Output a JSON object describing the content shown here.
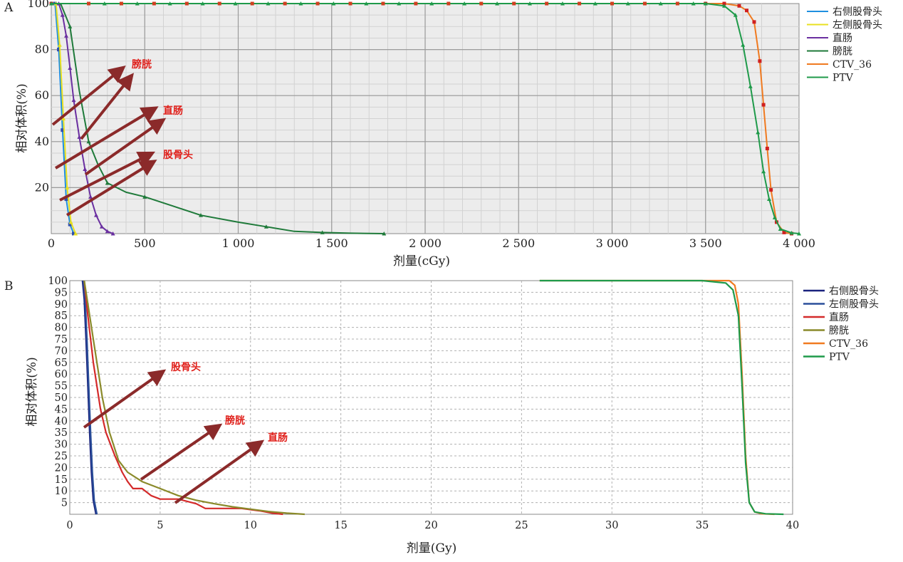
{
  "chart_data": [
    {
      "type": "line",
      "panel_label": "A",
      "xlabel": "剂量(cGy)",
      "ylabel": "相对体积(%)",
      "xlim": [
        0,
        4000
      ],
      "ylim": [
        0,
        100
      ],
      "x_ticks": [
        0,
        500,
        1000,
        1500,
        2000,
        2500,
        3000,
        3500,
        4000
      ],
      "x_tick_labels": [
        "0",
        "500",
        "1 000",
        "1 500",
        "2 000",
        "2 500",
        "3 000",
        "3 500",
        "4 000"
      ],
      "y_ticks": [
        20,
        40,
        60,
        80,
        100
      ],
      "y_tick_labels": [
        "20",
        "40",
        "60",
        "80",
        "100"
      ],
      "grid": true,
      "legend_position": "right",
      "series": [
        {
          "name": "右侧股骨头",
          "color": "#1f8fe0",
          "marker": "circle",
          "x": [
            0,
            20,
            40,
            60,
            80,
            100,
            120
          ],
          "y": [
            100,
            100,
            80,
            45,
            15,
            4,
            0
          ]
        },
        {
          "name": "左侧股骨头",
          "color": "#e8e020",
          "marker": "triangle",
          "x": [
            0,
            25,
            45,
            65,
            85,
            105,
            130
          ],
          "y": [
            100,
            100,
            82,
            50,
            20,
            5,
            0
          ]
        },
        {
          "name": "直肠",
          "color": "#6a2fa0",
          "marker": "triangle",
          "x": [
            0,
            40,
            60,
            80,
            100,
            120,
            150,
            180,
            210,
            240,
            270,
            300,
            330
          ],
          "y": [
            100,
            100,
            95,
            86,
            72,
            58,
            42,
            28,
            16,
            8,
            3,
            1,
            0
          ]
        },
        {
          "name": "膀胱",
          "color": "#1f7a3a",
          "marker": "triangle",
          "x": [
            0,
            50,
            100,
            150,
            200,
            250,
            300,
            400,
            500,
            650,
            800,
            1000,
            1150,
            1300,
            1450,
            1600,
            1780
          ],
          "y": [
            100,
            100,
            90,
            62,
            40,
            30,
            22,
            18,
            16,
            12,
            8,
            5,
            3,
            1,
            0.5,
            0.2,
            0
          ]
        },
        {
          "name": "CTV_36",
          "color": "#f07a20",
          "marker": "square",
          "x": [
            0,
            3500,
            3600,
            3680,
            3720,
            3760,
            3790,
            3810,
            3830,
            3850,
            3880,
            3920,
            3960
          ],
          "y": [
            100,
            100,
            100,
            99,
            97,
            92,
            75,
            56,
            37,
            19,
            5,
            0.5,
            0
          ]
        },
        {
          "name": "PTV",
          "color": "#1f9a4a",
          "marker": "triangle",
          "x": [
            0,
            3500,
            3600,
            3660,
            3700,
            3740,
            3780,
            3810,
            3840,
            3870,
            3900,
            3960,
            4000
          ],
          "y": [
            100,
            100,
            99,
            95,
            82,
            64,
            44,
            27,
            15,
            7,
            2,
            0.3,
            0
          ]
        }
      ],
      "annotations": [
        "膀胱",
        "直肠",
        "股骨头"
      ]
    },
    {
      "type": "line",
      "panel_label": "B",
      "xlabel": "剂量(Gy)",
      "ylabel": "相对体积(%)",
      "xlim": [
        0,
        40
      ],
      "ylim": [
        0,
        100
      ],
      "x_ticks": [
        0,
        5,
        10,
        15,
        20,
        25,
        30,
        35,
        40
      ],
      "x_tick_labels": [
        "0",
        "5",
        "10",
        "15",
        "20",
        "25",
        "30",
        "35",
        "40"
      ],
      "y_ticks": [
        5,
        10,
        15,
        20,
        25,
        30,
        35,
        40,
        45,
        50,
        55,
        60,
        65,
        70,
        75,
        80,
        85,
        90,
        95,
        100
      ],
      "y_tick_labels": [
        "5",
        "10",
        "15",
        "20",
        "25",
        "30",
        "35",
        "40",
        "45",
        "50",
        "55",
        "60",
        "65",
        "70",
        "75",
        "80",
        "85",
        "90",
        "95",
        "100"
      ],
      "grid": true,
      "legend_position": "right",
      "series": [
        {
          "name": "右侧股骨头",
          "color": "#1a237e",
          "x": [
            0.7,
            0.8,
            0.9,
            1.0,
            1.1,
            1.2,
            1.3,
            1.45
          ],
          "y": [
            100,
            92,
            75,
            55,
            35,
            18,
            6,
            0
          ]
        },
        {
          "name": "左侧股骨头",
          "color": "#2a4f9a",
          "x": [
            0.75,
            0.85,
            0.95,
            1.05,
            1.15,
            1.25,
            1.35,
            1.5
          ],
          "y": [
            100,
            92,
            75,
            55,
            35,
            18,
            6,
            0
          ]
        },
        {
          "name": "直肠",
          "color": "#d42a2a",
          "x": [
            0.8,
            1.0,
            1.3,
            1.7,
            2.0,
            2.5,
            2.9,
            3.2,
            3.5,
            4.0,
            4.5,
            5.0,
            6.0,
            7.0,
            7.5,
            8.5,
            9.5,
            10.5,
            11.2,
            11.8
          ],
          "y": [
            100,
            85,
            65,
            45,
            35,
            25,
            18,
            14,
            11,
            11,
            8,
            6.5,
            6.5,
            4.5,
            2.5,
            2.5,
            2.5,
            1.5,
            0.5,
            0
          ]
        },
        {
          "name": "膀胱",
          "color": "#8a8a2a",
          "x": [
            0.8,
            1.0,
            1.4,
            1.8,
            2.2,
            2.7,
            3.2,
            4.0,
            5.0,
            6.0,
            7.0,
            8.0,
            9.0,
            10.0,
            11.0,
            12.0,
            13.0
          ],
          "y": [
            100,
            90,
            70,
            50,
            35,
            23,
            18,
            14,
            11,
            8,
            6,
            4.5,
            3.2,
            2.2,
            1.2,
            0.5,
            0
          ]
        },
        {
          "name": "CTV_36",
          "color": "#f07a20",
          "x": [
            26,
            35,
            36.5,
            36.8,
            37.0,
            37.2,
            37.4,
            37.6,
            37.9,
            38.3,
            39.0
          ],
          "y": [
            100,
            100,
            100,
            98,
            90,
            60,
            25,
            5,
            1,
            0.2,
            0
          ]
        },
        {
          "name": "PTV",
          "color": "#1f9a4a",
          "x": [
            26,
            35,
            36.3,
            36.7,
            37.0,
            37.2,
            37.4,
            37.6,
            37.9,
            38.5,
            39.5
          ],
          "y": [
            100,
            100,
            99,
            96,
            85,
            55,
            22,
            5,
            1,
            0.2,
            0
          ]
        }
      ],
      "annotations": [
        "股骨头",
        "膀胱",
        "直肠"
      ]
    }
  ]
}
